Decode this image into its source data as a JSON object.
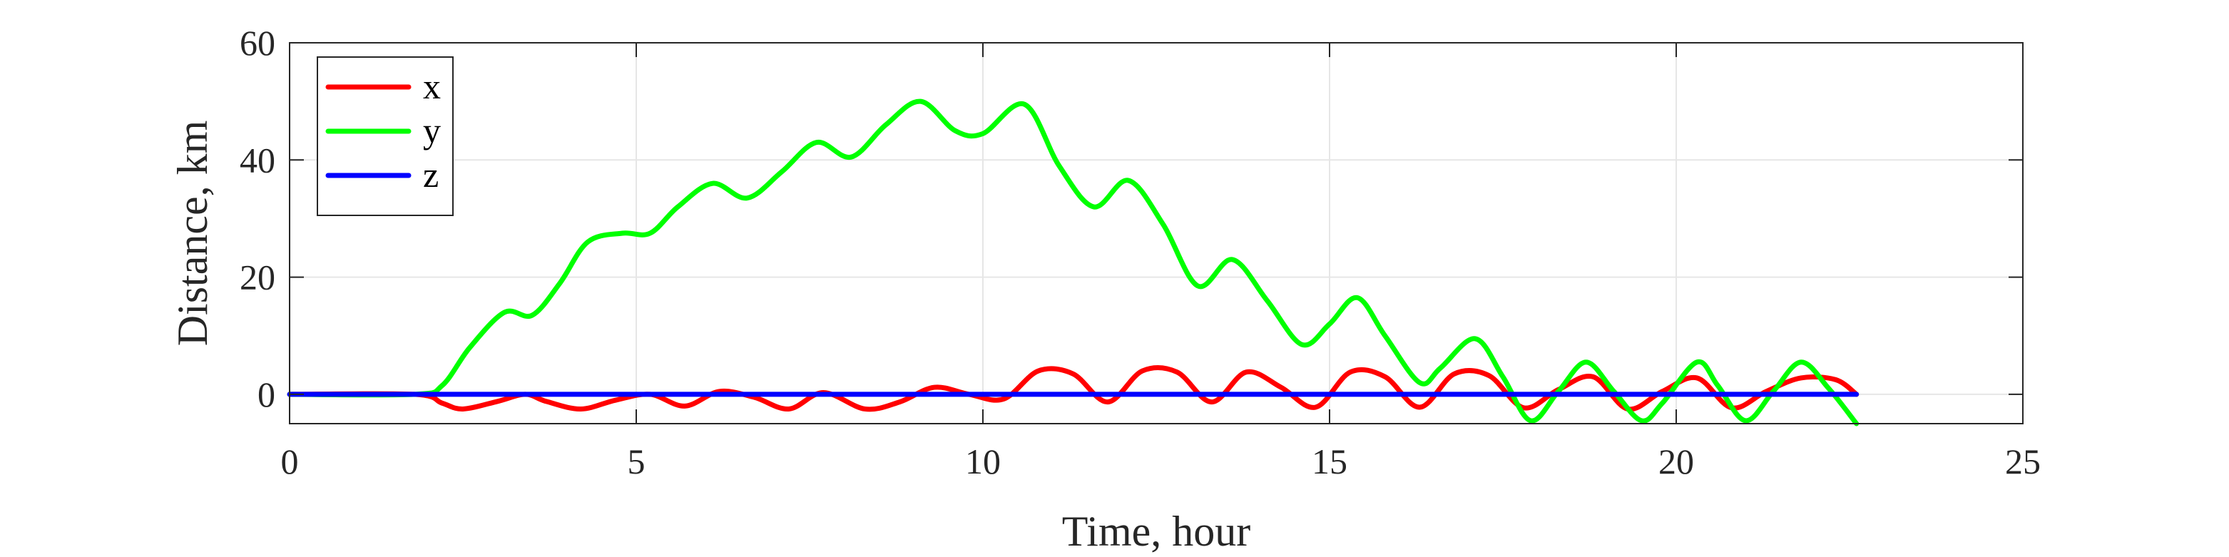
{
  "chart_data": {
    "type": "line",
    "title": "",
    "xlabel": "Time, hour",
    "ylabel": "Distance, km",
    "xlim": [
      0,
      25
    ],
    "ylim": [
      -5,
      60
    ],
    "xticks": [
      0,
      5,
      10,
      15,
      20,
      25
    ],
    "yticks": [
      0,
      20,
      40,
      60
    ],
    "grid": true,
    "legend_position": "top-left",
    "series": [
      {
        "name": "x",
        "color": "#ff0000",
        "x": [
          0,
          1.8,
          2.2,
          2.5,
          3.0,
          3.4,
          3.7,
          4.2,
          4.7,
          5.2,
          5.7,
          6.2,
          6.7,
          7.2,
          7.7,
          8.3,
          8.8,
          9.3,
          9.8,
          10.3,
          10.8,
          11.3,
          11.8,
          12.3,
          12.8,
          13.3,
          13.8,
          14.3,
          14.8,
          15.3,
          15.8,
          16.3,
          16.8,
          17.3,
          17.8,
          18.3,
          18.8,
          19.3,
          19.8,
          20.3,
          20.8,
          21.3,
          21.8,
          22.3,
          22.6
        ],
        "y": [
          0,
          0,
          -1.5,
          -2.5,
          -1.2,
          0,
          -1.2,
          -2.5,
          -1,
          0,
          -2,
          0.5,
          -0.5,
          -2.5,
          0.3,
          -2.5,
          -1.3,
          1.2,
          0,
          -0.8,
          4,
          3.5,
          -1.3,
          4,
          3.8,
          -1.3,
          3.8,
          1.2,
          -2.2,
          3.8,
          3,
          -2.2,
          3.5,
          3.2,
          -2.3,
          0.8,
          3,
          -2.5,
          0.5,
          2.8,
          -2.3,
          0.5,
          2.8,
          2.5,
          0
        ]
      },
      {
        "name": "y",
        "color": "#00ff00",
        "x": [
          0,
          1.8,
          2.2,
          2.6,
          3.1,
          3.5,
          3.9,
          4.3,
          4.8,
          5.2,
          5.6,
          6.1,
          6.6,
          7.1,
          7.6,
          8.1,
          8.6,
          9.1,
          9.6,
          10.0,
          10.6,
          11.1,
          11.6,
          12.1,
          12.6,
          13.1,
          13.6,
          14.1,
          14.6,
          15.0,
          15.4,
          15.8,
          16.3,
          16.6,
          17.1,
          17.5,
          17.9,
          18.3,
          18.7,
          19.1,
          19.5,
          19.8,
          20.3,
          20.6,
          21.0,
          21.4,
          21.8,
          22.2,
          22.6
        ],
        "y": [
          0,
          0,
          1.5,
          8,
          14,
          13.5,
          19,
          26,
          27.5,
          27.5,
          32,
          36,
          33.5,
          38,
          43,
          40.5,
          46,
          50,
          45,
          44.5,
          49.5,
          39,
          32,
          36.5,
          29,
          18.5,
          23,
          16,
          8.5,
          12,
          16.5,
          10,
          2,
          4.5,
          9.5,
          3,
          -4.5,
          0.5,
          5.5,
          0.5,
          -4.5,
          -1.5,
          5.5,
          1.5,
          -4.5,
          0.5,
          5.5,
          1,
          -5
        ]
      },
      {
        "name": "z",
        "color": "#0000ff",
        "x": [
          0,
          22.6
        ],
        "y": [
          0,
          0
        ]
      }
    ]
  }
}
